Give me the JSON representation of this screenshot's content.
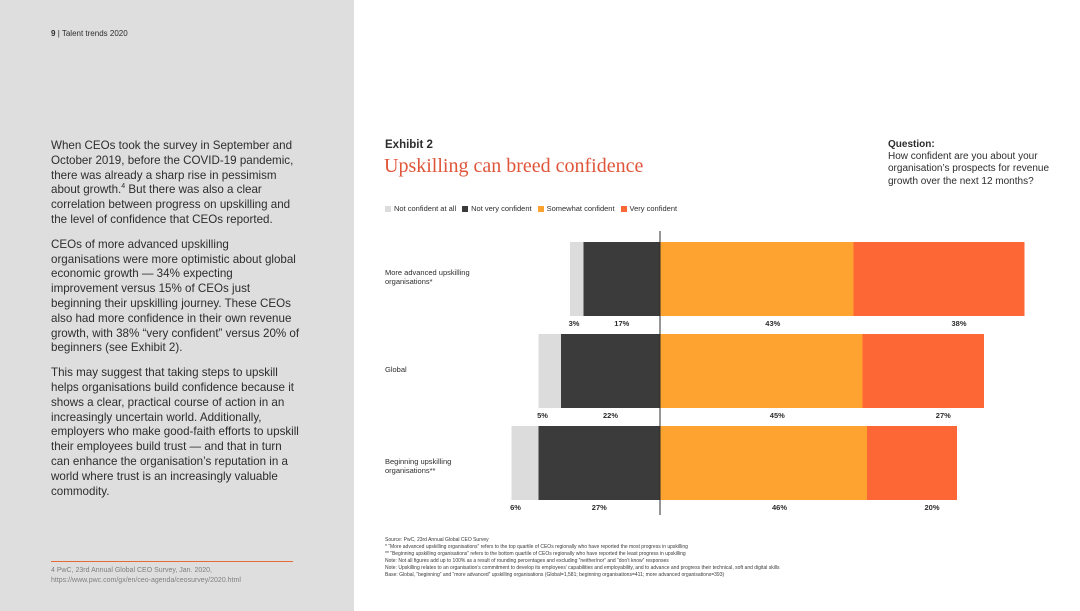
{
  "header": {
    "page_number": "9",
    "separator": "|",
    "publication": "Talent trends 2020"
  },
  "body": {
    "p1_before": "When CEOs took the survey in September and October 2019, before the COVID-19 pandemic, there was already a sharp rise in pessimism about growth.",
    "p1_sup": "4",
    "p1_after": " But there was also a clear correlation between progress on upskilling and the level of confidence that CEOs reported.",
    "p2": "CEOs of more advanced upskilling organisations were more optimistic about global economic growth — 34% expecting improvement versus 15% of CEOs just beginning their upskilling journey. These CEOs also had more confidence in their own revenue growth, with 38% “very confident” versus 20% of beginners (see Exhibit 2).",
    "p3": "This may suggest that taking steps to upskill helps organisations build confidence because it shows a clear, practical course of action in an increasingly uncertain world. Additionally, employers who make good-faith efforts to upskill their employees build trust — and that in turn can enhance the organisation’s reputation in a world where trust is an increasingly valuable commodity."
  },
  "footnote": {
    "text": "4  PwC, 23rd Annual Global CEO Survey, Jan. 2020,",
    "url": "https://www.pwc.com/gx/en/ceo-agenda/ceosurvey/2020.html"
  },
  "exhibit": {
    "label": "Exhibit 2",
    "title": "Upskilling can breed confidence",
    "question_label": "Question:",
    "question_text": "How confident are you about your organisation’s prospects for revenue growth over the next 12 months?"
  },
  "colors": {
    "not_confident_at_all": "#dcdcdc",
    "not_very_confident": "#3b3b3b",
    "somewhat_confident": "#fea32f",
    "very_confident": "#fd6735",
    "title_accent": "#e0553a"
  },
  "chart_data": {
    "type": "bar",
    "orientation": "horizontal-stacked-diverging",
    "categories": [
      "More advanced upskilling organisations*",
      "Global",
      "Beginning upskilling organisations**"
    ],
    "series": [
      {
        "name": "Not confident at all",
        "values": [
          3,
          5,
          6
        ],
        "labels": [
          "3%",
          "5%",
          "6%"
        ]
      },
      {
        "name": "Not very confident",
        "values": [
          17,
          22,
          27
        ],
        "labels": [
          "17%",
          "22%",
          "27%"
        ]
      },
      {
        "name": "Somewhat confident",
        "values": [
          43,
          45,
          46
        ],
        "labels": [
          "43%",
          "45%",
          "46%"
        ]
      },
      {
        "name": "Very confident",
        "values": [
          38,
          27,
          20
        ],
        "labels": [
          "38%",
          "27%",
          "20%"
        ]
      }
    ],
    "legend_position": "top-left",
    "grid": false
  },
  "sources": [
    "Source: PwC, 23rd Annual Global CEO Survey",
    "* “More advanced upskilling organisations” refers to the top quartile of CEOs regionally who have reported the most progress in upskilling",
    "** “Beginning upskilling organisations” refers to the bottom quartile of CEOs regionally who have reported the least progress in upskilling",
    "Note: Not all figures add up to 100% as a result of rounding percentages and excluding “neither/nor” and “don’t know” responses",
    "Note: Upskilling relates to an organisation’s commitment to develop its employees’ capabilities and employability, and to advance and progress their technical, soft and digital skills",
    "Base: Global, “beginning” and “more advanced” upskilling organisations (Global=1,581; beginning organisations=411; more advanced organisations=393)"
  ]
}
